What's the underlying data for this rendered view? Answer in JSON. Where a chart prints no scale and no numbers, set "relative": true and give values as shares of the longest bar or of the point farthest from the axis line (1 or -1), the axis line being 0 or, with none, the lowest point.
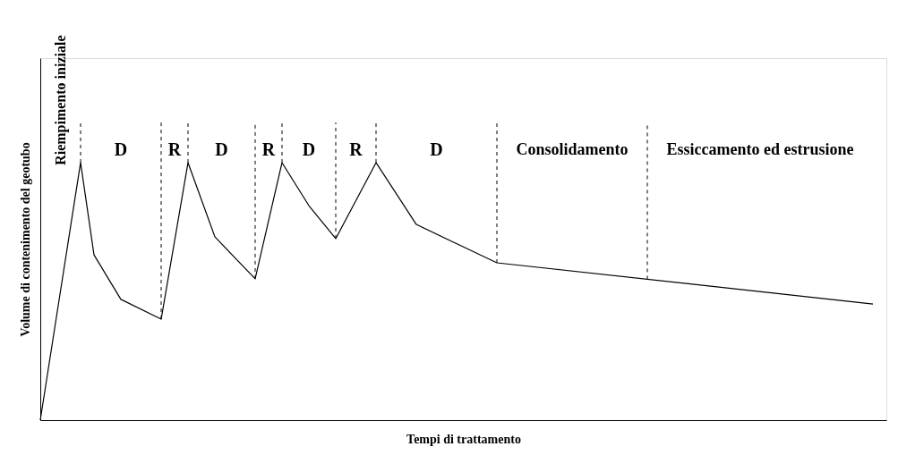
{
  "chart_data": {
    "type": "line",
    "relative": true,
    "xlabel": "Tempi di trattamento",
    "ylabel": "Volume di contenimento del geotubo",
    "marker": "none",
    "line_style": "solid",
    "categories": [
      null,
      null,
      null,
      null,
      null,
      null,
      null,
      null,
      null,
      null,
      null,
      null,
      null,
      null,
      null,
      null,
      null,
      null,
      null,
      null,
      null,
      null,
      null,
      null,
      null,
      null,
      null,
      null,
      null,
      null,
      null,
      null,
      null,
      null,
      null,
      null,
      null,
      null,
      null,
      null,
      null,
      null,
      null,
      null,
      null,
      null,
      null,
      null,
      null,
      null,
      null,
      null,
      null,
      null,
      null,
      null,
      null,
      null,
      null,
      null,
      null,
      null,
      null,
      null
    ],
    "series": [
      {
        "color": "#000000",
        "values": [
          0,
          null,
          null,
          1,
          0.642,
          null,
          0.469,
          null,
          null,
          0.392,
          null,
          1,
          null,
          0.712,
          null,
          null,
          0.549,
          null,
          1,
          null,
          0.833,
          null,
          0.705,
          null,
          null,
          1,
          null,
          null,
          0.76,
          null,
          null,
          null,
          null,
          null,
          0.611,
          null,
          null,
          null,
          null,
          null,
          null,
          null,
          null,
          null,
          null,
          null,
          null,
          null,
          null,
          null,
          null,
          null,
          null,
          null,
          null,
          null,
          null,
          null,
          null,
          null,
          null,
          null,
          0.451,
          null
        ]
      }
    ],
    "annotations": [
      "Riempimento iniziale",
      "D",
      "R",
      "D",
      "R",
      "D",
      "R",
      "D",
      "Consolidamento",
      "Essiccamento ed estrusione"
    ]
  }
}
